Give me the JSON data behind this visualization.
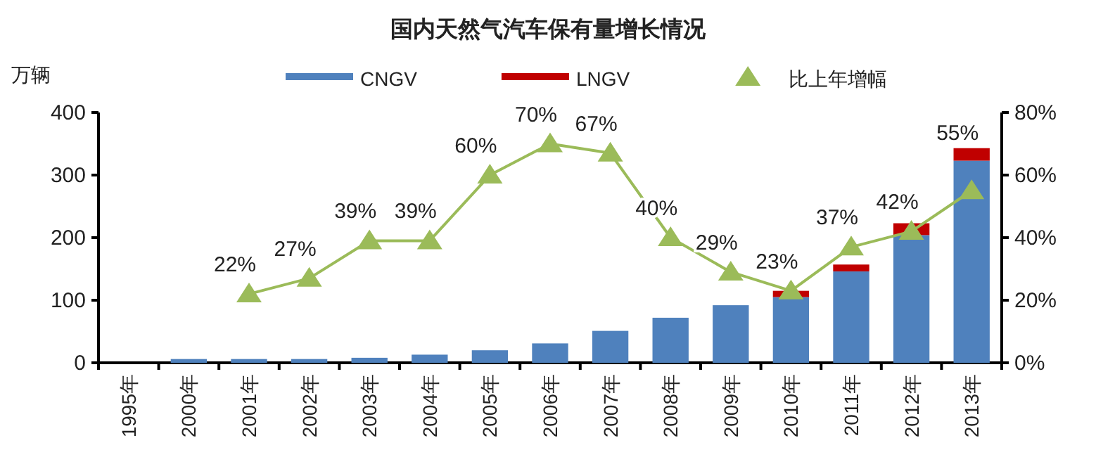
{
  "chart_data": {
    "type": "bar",
    "title": "国内天然气汽车保有量增长情况",
    "ylabel": "万辆",
    "stacked": true,
    "legend": "top",
    "grid": false,
    "categories": [
      "1995年",
      "2000年",
      "2001年",
      "2002年",
      "2003年",
      "2004年",
      "2005年",
      "2006年",
      "2007年",
      "2008年",
      "2009年",
      "2010年",
      "2011年",
      "2012年",
      "2013年"
    ],
    "ylim": [
      0,
      400
    ],
    "yticks": [
      0,
      100,
      200,
      300,
      400
    ],
    "y2lim": [
      0,
      80
    ],
    "y2ticks": [
      {
        "value": 0,
        "label": "0%"
      },
      {
        "value": 20,
        "label": "20%"
      },
      {
        "value": 40,
        "label": "40%"
      },
      {
        "value": 60,
        "label": "60%"
      },
      {
        "value": 80,
        "label": "80%"
      }
    ],
    "series": [
      {
        "name": "CNGV",
        "color": "#4f81bd",
        "values": [
          null,
          6,
          6,
          6,
          8,
          13,
          20,
          31,
          51,
          72,
          92,
          105,
          146,
          204,
          323
        ]
      },
      {
        "name": "LNGV",
        "color": "#c00000",
        "values": [
          null,
          null,
          null,
          null,
          null,
          null,
          null,
          null,
          null,
          null,
          null,
          10,
          11,
          19,
          20
        ]
      },
      {
        "name": "比上年增幅",
        "type": "line",
        "axis": "y2",
        "color": "#9bbb59",
        "marker": "triangle",
        "data_labels": true,
        "value_labels": [
          null,
          null,
          "22%",
          "27%",
          "39%",
          "39%",
          "60%",
          "70%",
          "67%",
          "40%",
          "29%",
          "23%",
          "37%",
          "42%",
          "55%"
        ],
        "values": [
          null,
          null,
          22,
          27,
          39,
          39,
          60,
          70,
          67,
          40,
          29,
          23,
          37,
          42,
          55
        ]
      }
    ]
  }
}
